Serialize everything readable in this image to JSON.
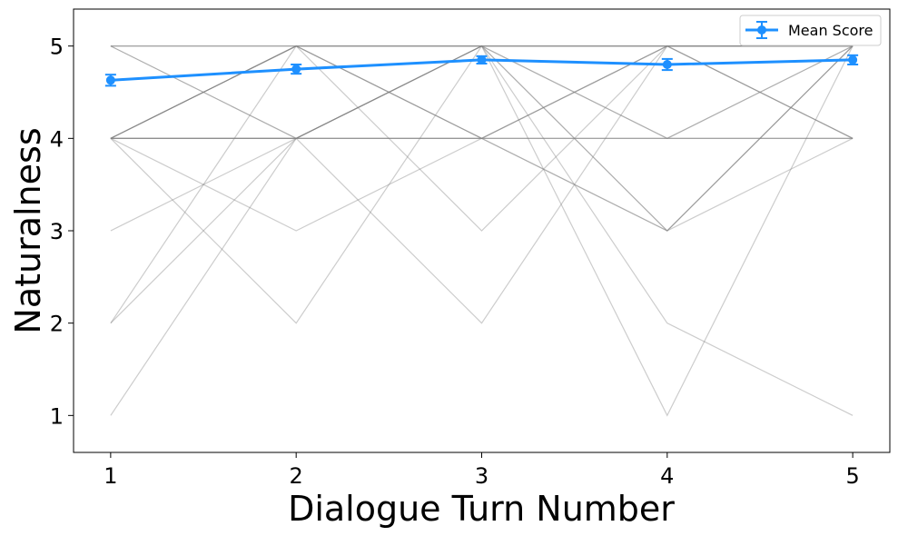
{
  "chart_data": {
    "type": "line",
    "xlabel": "Dialogue Turn Number",
    "ylabel": "Naturalness",
    "x": [
      1,
      2,
      3,
      4,
      5
    ],
    "xlim": [
      0.8,
      5.2
    ],
    "ylim": [
      0.6,
      5.4
    ],
    "xticks": [
      "1",
      "2",
      "3",
      "4",
      "5"
    ],
    "yticks": [
      "1",
      "2",
      "3",
      "4",
      "5"
    ],
    "grid": false,
    "legend_position": "top-right",
    "mean_series": {
      "name": "Mean Score",
      "color": "#1e90ff",
      "values": [
        4.63,
        4.75,
        4.85,
        4.8,
        4.85
      ],
      "error": [
        0.06,
        0.05,
        0.04,
        0.06,
        0.05
      ]
    },
    "individual_series_color": "#808080",
    "individual_series": [
      [
        5,
        5,
        5,
        5,
        5
      ],
      [
        5,
        5,
        5,
        5,
        5
      ],
      [
        5,
        5,
        5,
        5,
        5
      ],
      [
        4,
        4,
        4,
        4,
        4
      ],
      [
        4,
        4,
        4,
        4,
        4
      ],
      [
        4,
        4,
        4,
        4,
        4
      ],
      [
        5,
        4,
        5,
        4,
        5
      ],
      [
        5,
        4,
        5,
        4,
        5
      ],
      [
        4,
        5,
        4,
        5,
        4
      ],
      [
        4,
        5,
        4,
        5,
        4
      ],
      [
        4,
        5,
        5,
        5,
        4
      ],
      [
        4,
        4,
        5,
        3,
        5
      ],
      [
        4,
        4,
        4,
        3,
        5
      ],
      [
        3,
        4,
        5,
        5,
        5
      ],
      [
        2,
        5,
        4,
        3,
        5
      ],
      [
        4,
        3,
        4,
        5,
        5
      ],
      [
        2,
        4,
        5,
        3,
        4
      ],
      [
        4,
        2,
        5,
        1,
        5
      ],
      [
        1,
        4,
        2,
        5,
        5
      ],
      [
        4,
        5,
        3,
        5,
        5
      ],
      [
        4,
        5,
        5,
        2,
        1
      ]
    ]
  }
}
